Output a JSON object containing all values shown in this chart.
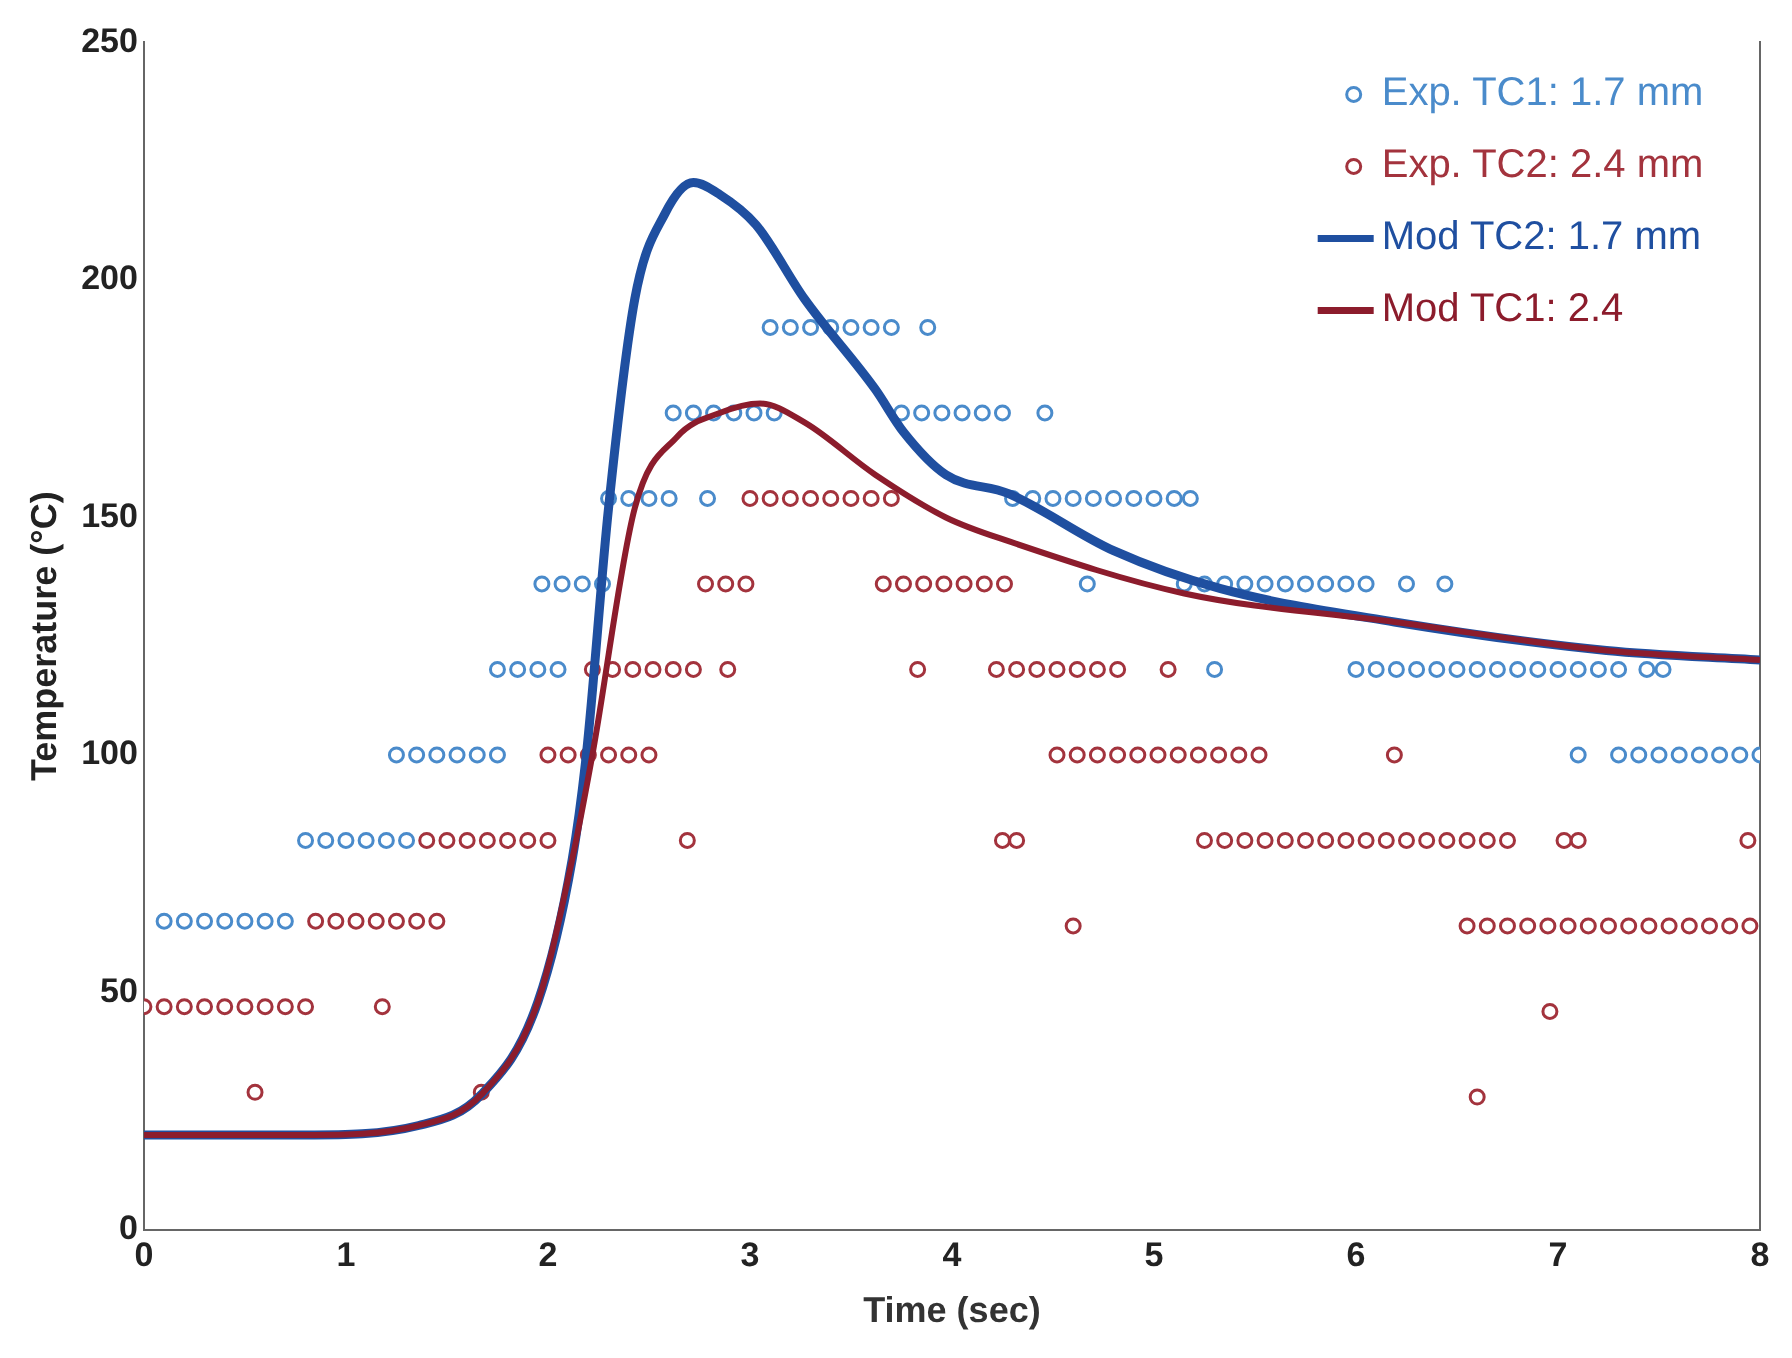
{
  "chart_data": {
    "type": "scatter",
    "xlabel": "Time (sec)",
    "ylabel": "Temperature (°C)",
    "xlim": [
      0,
      8
    ],
    "xticks": [
      0,
      1,
      2,
      3,
      4,
      5,
      6,
      7,
      8
    ],
    "ylim": [
      0,
      250
    ],
    "yticks": [
      0,
      50,
      100,
      150,
      200,
      250
    ],
    "grid": false,
    "legend": "top right",
    "series": [
      {
        "name": "Exp. TC1: 1.7 mm",
        "marker": "circle",
        "color": "#4a8bcb",
        "x": [
          0.1,
          0.2,
          0.3,
          0.4,
          0.5,
          0.6,
          0.7,
          0.8,
          0.9,
          1.0,
          1.1,
          1.2,
          1.3,
          1.25,
          1.35,
          1.45,
          1.55,
          1.65,
          1.75,
          1.75,
          1.85,
          1.95,
          2.05,
          1.97,
          2.07,
          2.17,
          2.27,
          2.3,
          2.4,
          2.5,
          2.6,
          2.79,
          2.62,
          2.72,
          2.82,
          2.92,
          3.02,
          3.12,
          3.75,
          3.85,
          3.95,
          4.05,
          4.15,
          4.25,
          4.46,
          3.1,
          3.2,
          3.3,
          3.4,
          3.5,
          3.6,
          3.7,
          3.88,
          4.3,
          4.4,
          4.5,
          4.6,
          4.7,
          4.8,
          4.9,
          5.0,
          5.1,
          5.18,
          4.67,
          5.15,
          5.25,
          5.35,
          5.45,
          5.55,
          5.65,
          5.75,
          5.85,
          5.95,
          6.05,
          6.25,
          6.44,
          5.3,
          6.0,
          6.1,
          6.2,
          6.3,
          6.4,
          6.5,
          6.6,
          6.7,
          6.8,
          6.9,
          7.0,
          7.1,
          7.2,
          7.3,
          7.44,
          7.52,
          7.1,
          7.3,
          7.4,
          7.5,
          7.6,
          7.7,
          7.8,
          7.9,
          8.0
        ],
        "values": [
          65,
          65,
          65,
          65,
          65,
          65,
          65,
          82,
          82,
          82,
          82,
          82,
          82,
          100,
          100,
          100,
          100,
          100,
          100,
          118,
          118,
          118,
          118,
          136,
          136,
          136,
          136,
          154,
          154,
          154,
          154,
          154,
          172,
          172,
          172,
          172,
          172,
          172,
          172,
          172,
          172,
          172,
          172,
          172,
          172,
          190,
          190,
          190,
          190,
          190,
          190,
          190,
          190,
          154,
          154,
          154,
          154,
          154,
          154,
          154,
          154,
          154,
          154,
          136,
          136,
          136,
          136,
          136,
          136,
          136,
          136,
          136,
          136,
          136,
          136,
          136,
          118,
          118,
          118,
          118,
          118,
          118,
          118,
          118,
          118,
          118,
          118,
          118,
          118,
          118,
          118,
          118,
          118,
          100,
          100,
          100,
          100,
          100,
          100,
          100,
          100,
          100
        ]
      },
      {
        "name": "Exp. TC2: 2.4 mm",
        "marker": "circle",
        "color": "#a3333d",
        "x": [
          0,
          0.1,
          0.2,
          0.3,
          0.4,
          0.5,
          0.6,
          0.7,
          0.8,
          1.18,
          0.55,
          1.67,
          0.85,
          0.95,
          1.05,
          1.15,
          1.25,
          1.35,
          1.45,
          1.4,
          1.5,
          1.6,
          1.7,
          1.8,
          1.9,
          2.0,
          2.69,
          2.0,
          2.1,
          2.2,
          2.3,
          2.4,
          2.5,
          2.22,
          2.32,
          2.42,
          2.52,
          2.62,
          2.72,
          2.89,
          3.83,
          2.78,
          2.88,
          2.98,
          3.66,
          3.76,
          3.86,
          3.96,
          4.06,
          4.16,
          4.26,
          3.0,
          3.1,
          3.2,
          3.3,
          3.4,
          3.5,
          3.6,
          3.7,
          4.22,
          4.32,
          4.42,
          4.52,
          4.62,
          4.72,
          4.82,
          5.07,
          4.52,
          4.62,
          4.72,
          4.82,
          4.92,
          5.02,
          5.12,
          5.22,
          5.32,
          5.42,
          5.52,
          6.19,
          4.25,
          4.32,
          5.25,
          5.35,
          5.45,
          5.55,
          5.65,
          5.75,
          5.85,
          5.95,
          6.05,
          6.15,
          6.25,
          6.35,
          6.45,
          6.55,
          6.65,
          6.75,
          7.03,
          7.1,
          7.94,
          4.6,
          6.55,
          6.65,
          6.75,
          6.85,
          6.95,
          7.05,
          7.15,
          7.25,
          7.35,
          7.45,
          7.55,
          7.65,
          7.75,
          7.85,
          7.95,
          6.96,
          6.6
        ],
        "values": [
          47,
          47,
          47,
          47,
          47,
          47,
          47,
          47,
          47,
          47,
          29,
          29,
          65,
          65,
          65,
          65,
          65,
          65,
          65,
          82,
          82,
          82,
          82,
          82,
          82,
          82,
          82,
          100,
          100,
          100,
          100,
          100,
          100,
          118,
          118,
          118,
          118,
          118,
          118,
          118,
          118,
          136,
          136,
          136,
          136,
          136,
          136,
          136,
          136,
          136,
          136,
          154,
          154,
          154,
          154,
          154,
          154,
          154,
          154,
          118,
          118,
          118,
          118,
          118,
          118,
          118,
          118,
          100,
          100,
          100,
          100,
          100,
          100,
          100,
          100,
          100,
          100,
          100,
          100,
          82,
          82,
          82,
          82,
          82,
          82,
          82,
          82,
          82,
          82,
          82,
          82,
          82,
          82,
          82,
          82,
          82,
          82,
          82,
          82,
          82,
          64,
          64,
          64,
          64,
          64,
          64,
          64,
          64,
          64,
          64,
          64,
          64,
          64,
          64,
          64,
          64,
          46,
          28
        ]
      },
      {
        "name": "Mod TC2: 1.7 mm",
        "type": "line",
        "marker": "none",
        "color": "#1f4fa0",
        "x": [
          0,
          0.8,
          1.36,
          1.67,
          1.95,
          2.12,
          2.19,
          2.3,
          2.43,
          2.58,
          2.72,
          2.85,
          3.03,
          3.27,
          3.62,
          3.76,
          3.97,
          4.28,
          4.8,
          5.33,
          6.19,
          7.24,
          8.0
        ],
        "values": [
          20,
          20,
          22,
          28.5,
          48,
          78,
          100,
          152,
          196,
          214,
          220.5,
          218,
          211.6,
          196,
          177,
          168,
          159,
          155,
          143,
          135,
          128,
          122,
          120
        ]
      },
      {
        "name": "Mod TC1: 2.4",
        "type": "line",
        "marker": "none",
        "color": "#8c1c2c",
        "x": [
          0,
          0.8,
          1.36,
          1.67,
          1.95,
          2.12,
          2.22,
          2.43,
          2.64,
          2.85,
          3.05,
          3.27,
          3.62,
          3.97,
          4.28,
          5.15,
          6.19,
          7.24,
          8.0
        ],
        "values": [
          20,
          20,
          22,
          28.5,
          48,
          78,
          100,
          152,
          167,
          172,
          174,
          170,
          159,
          150,
          145,
          134,
          128,
          122,
          120
        ]
      }
    ]
  }
}
